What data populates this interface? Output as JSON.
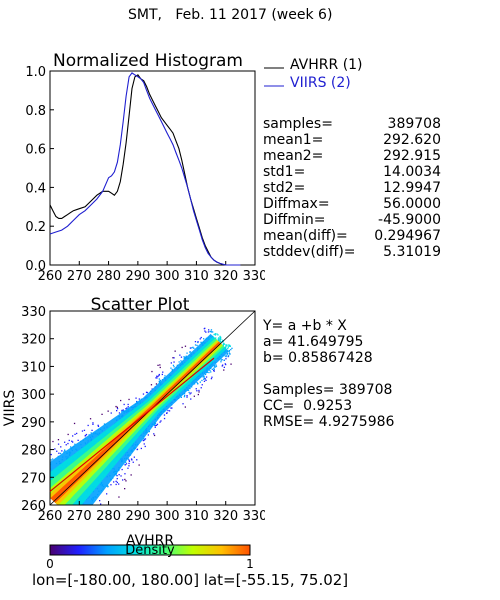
{
  "page_title": "SMT,   Feb. 11 2017 (week 6)",
  "colors": {
    "avhrr": "#000000",
    "viirs": "#1f1fd0",
    "fit_line": "#e00000"
  },
  "histogram": {
    "title": "Normalized Histogram",
    "legend": [
      {
        "name": "AVHRR (1)",
        "color": "#000000"
      },
      {
        "name": "VIIRS (2)",
        "color": "#1f1fd0"
      }
    ],
    "stats": [
      {
        "label": "samples=",
        "value": "389708"
      },
      {
        "label": "mean1=",
        "value": "292.620"
      },
      {
        "label": "mean2=",
        "value": "292.915"
      },
      {
        "label": "std1=",
        "value": "14.0034"
      },
      {
        "label": "std2=",
        "value": "12.9947"
      },
      {
        "label": "Diffmax=",
        "value": "56.0000"
      },
      {
        "label": "Diffmin=",
        "value": "-45.9000"
      },
      {
        "label": "mean(diff)=",
        "value": "0.294967"
      },
      {
        "label": "stddev(diff)=",
        "value": "5.31019"
      }
    ]
  },
  "scatter": {
    "title": "Scatter Plot",
    "xlabel": "AVHRR",
    "ylabel": "VIIRS",
    "fit": {
      "equation": "Y= a +b * X",
      "a_text": "a= 41.649795",
      "b_text": "b= 0.85867428",
      "a": 41.649795,
      "b": 0.85867428
    },
    "samples_text": "Samples= 389708",
    "cc_text": "CC=  0.9253",
    "rmse_text": "RMSE= 4.9275986"
  },
  "colorbar": {
    "label": "Density",
    "min_label": "0",
    "max_label": "1",
    "colors": [
      "#4a0070",
      "#2020ff",
      "#00a0ff",
      "#00e0e0",
      "#40ff80",
      "#c0ff00",
      "#ffc000",
      "#ff5000"
    ]
  },
  "footer": "lon=[-180.00, 180.00] lat=[-55.15, 75.02]",
  "chart_data": [
    {
      "type": "line",
      "title": "Normalized Histogram",
      "xlim": [
        260,
        330
      ],
      "ylim": [
        0,
        1
      ],
      "x_ticks": [
        "260",
        "270",
        "280",
        "290",
        "300",
        "310",
        "320",
        "330"
      ],
      "y_ticks": [
        "0.0",
        "0.2",
        "0.4",
        "0.6",
        "0.8",
        "1.0"
      ],
      "series": [
        {
          "name": "AVHRR (1)",
          "x": [
            260,
            261,
            262,
            263,
            264,
            265,
            266,
            267,
            268,
            270,
            272,
            274,
            276,
            278,
            280,
            281,
            282,
            283,
            284,
            285,
            286,
            287,
            288,
            289,
            290,
            291,
            292,
            293,
            294,
            295,
            296,
            297,
            298,
            299,
            300,
            301,
            302,
            303,
            304,
            305,
            306,
            307,
            308,
            309,
            310,
            311,
            312,
            313,
            314,
            315,
            316,
            317,
            318,
            319,
            320,
            321,
            322,
            323,
            324,
            325
          ],
          "y": [
            0.31,
            0.28,
            0.25,
            0.24,
            0.24,
            0.25,
            0.26,
            0.27,
            0.28,
            0.29,
            0.3,
            0.33,
            0.36,
            0.38,
            0.38,
            0.37,
            0.36,
            0.38,
            0.43,
            0.52,
            0.63,
            0.77,
            0.91,
            0.97,
            0.98,
            0.96,
            0.95,
            0.92,
            0.88,
            0.85,
            0.82,
            0.79,
            0.76,
            0.74,
            0.72,
            0.7,
            0.68,
            0.64,
            0.6,
            0.54,
            0.47,
            0.4,
            0.34,
            0.29,
            0.24,
            0.19,
            0.14,
            0.1,
            0.07,
            0.04,
            0.025,
            0.015,
            0.008,
            0.003,
            0.0,
            0.0,
            0.0,
            0.0,
            0.0,
            0.0
          ]
        },
        {
          "name": "VIIRS (2)",
          "x": [
            260,
            262,
            264,
            266,
            268,
            270,
            272,
            274,
            276,
            278,
            280,
            281,
            282,
            283,
            284,
            285,
            286,
            287,
            288,
            289,
            290,
            291,
            292,
            293,
            294,
            295,
            296,
            297,
            298,
            299,
            300,
            301,
            302,
            303,
            304,
            305,
            306,
            307,
            308,
            309,
            310,
            311,
            312,
            313,
            314,
            315,
            316,
            317,
            318,
            319,
            320,
            322,
            324,
            325
          ],
          "y": [
            0.16,
            0.17,
            0.18,
            0.2,
            0.23,
            0.26,
            0.28,
            0.31,
            0.34,
            0.38,
            0.45,
            0.46,
            0.48,
            0.53,
            0.62,
            0.74,
            0.87,
            0.97,
            0.99,
            0.98,
            0.97,
            0.96,
            0.94,
            0.9,
            0.86,
            0.83,
            0.8,
            0.77,
            0.74,
            0.71,
            0.68,
            0.65,
            0.62,
            0.58,
            0.54,
            0.5,
            0.45,
            0.4,
            0.34,
            0.28,
            0.23,
            0.18,
            0.13,
            0.09,
            0.06,
            0.04,
            0.025,
            0.015,
            0.008,
            0.004,
            0.0,
            0.0,
            0.0,
            0.0
          ]
        }
      ]
    },
    {
      "type": "scatter",
      "title": "Scatter Plot",
      "xlabel": "AVHRR",
      "ylabel": "VIIRS",
      "xlim": [
        260,
        330
      ],
      "ylim": [
        260,
        330
      ],
      "x_ticks": [
        "260",
        "270",
        "280",
        "290",
        "300",
        "310",
        "320",
        "330"
      ],
      "y_ticks": [
        "260",
        "270",
        "280",
        "290",
        "300",
        "310",
        "320",
        "330"
      ],
      "fit_line": {
        "x": [
          260,
          316
        ]
      }
    }
  ]
}
